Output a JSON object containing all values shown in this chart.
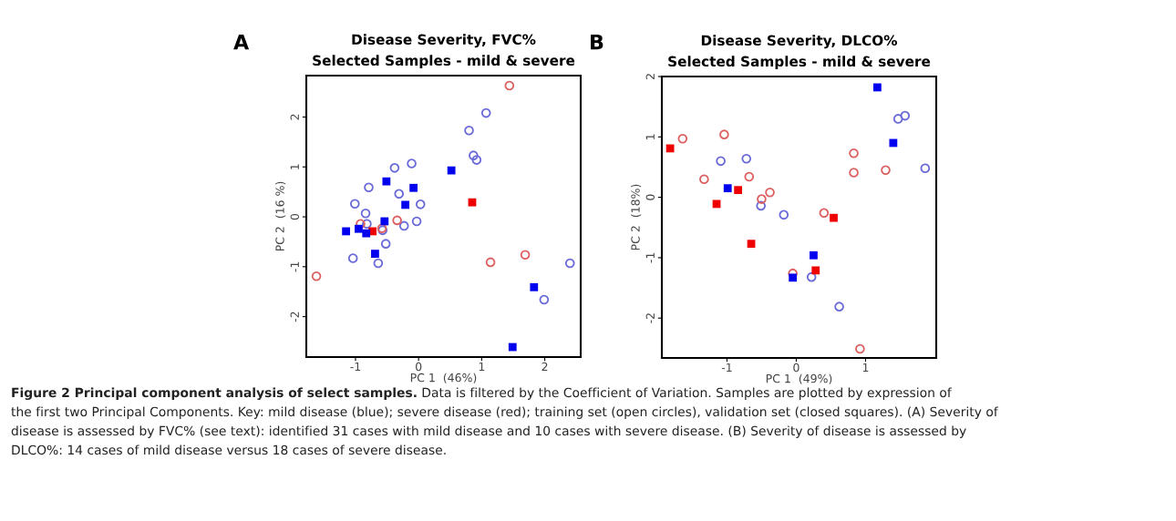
{
  "chart_data": [
    {
      "type": "scatter",
      "title": "Disease Severity, FVC%\nSelected Samples - mild & severe",
      "xlabel": "PC 1  (46%)",
      "ylabel": "PC 2  (16 %)",
      "xlim": [
        -1.78,
        2.57
      ],
      "ylim": [
        -2.81,
        2.83
      ],
      "xticks": [
        -1,
        0,
        1,
        2
      ],
      "yticks": [
        -2,
        -1,
        0,
        1,
        2
      ],
      "grid": false,
      "legend": false,
      "annotations": [
        "A",
        "Figure 2 Principal component analysis of select samples.",
        " Data is filtered by the Coefficient of Variation. Samples are plotted by expression of\nthe first two Principal Components. Key: mild disease (blue); severe disease (red); training set (open circles), validation set (closed squares). (A) Severity of\ndisease is assessed by FVC% (see text): identified 31 cases with mild disease and 10 cases with severe disease. (B) Severity of disease is assessed by\nDLCO%: 14 cases of mild disease versus 18 cases of severe disease."
      ],
      "series": [
        {
          "marker": "circle",
          "color": "#6a6ad8",
          "x": [
            -1.01,
            -0.79,
            -0.84,
            -0.82,
            -1.04,
            -0.64,
            -0.52,
            -0.38,
            -0.31,
            -0.23,
            -0.11,
            -0.03,
            0.03,
            0.8,
            1.07,
            0.87,
            0.92,
            1.99,
            2.4,
            -0.57
          ],
          "values": [
            0.26,
            0.59,
            0.07,
            -0.14,
            -0.83,
            -0.93,
            -0.54,
            0.98,
            0.46,
            -0.18,
            1.07,
            -0.09,
            0.25,
            1.73,
            2.08,
            1.23,
            1.14,
            -1.66,
            -0.93,
            -0.27
          ]
        },
        {
          "marker": "circle",
          "color": "#dd6060",
          "x": [
            -1.62,
            -0.92,
            -0.34,
            -0.58,
            1.44,
            1.69,
            1.14
          ],
          "values": [
            -1.19,
            -0.14,
            -0.07,
            -0.23,
            2.63,
            -0.76,
            -0.91
          ]
        },
        {
          "marker": "square",
          "color": "#ee0000",
          "x": [
            -0.73,
            0.85
          ],
          "values": [
            -0.29,
            0.29
          ]
        },
        {
          "marker": "square",
          "color": "#0000ee",
          "x": [
            -1.15,
            -0.95,
            -0.83,
            -0.69,
            -0.54,
            -0.51,
            -0.21,
            -0.08,
            0.52,
            1.83,
            1.49
          ],
          "values": [
            -0.29,
            -0.24,
            -0.33,
            -0.74,
            -0.09,
            0.71,
            0.24,
            0.58,
            0.93,
            -1.41,
            -2.61
          ]
        }
      ]
    },
    {
      "type": "scatter",
      "title": "Disease Severity, DLCO%\nSelected Samples - mild & severe",
      "xlabel": "PC 1  (49%)",
      "ylabel": "PC 2  (18%)",
      "xlim": [
        -1.94,
        2.02
      ],
      "ylim": [
        -2.66,
        2.0
      ],
      "xticks": [
        -1,
        0,
        1
      ],
      "yticks": [
        -2,
        -1,
        0,
        1,
        2
      ],
      "grid": false,
      "legend": false,
      "annotations": [
        "B"
      ],
      "series": [
        {
          "marker": "circle",
          "color": "#6a6ad8",
          "x": [
            -1.09,
            -0.72,
            -0.51,
            -0.18,
            0.22,
            0.62,
            1.47,
            1.57,
            1.86
          ],
          "values": [
            0.6,
            0.64,
            -0.14,
            -0.29,
            -1.32,
            -1.81,
            1.3,
            1.35,
            0.48
          ]
        },
        {
          "marker": "circle",
          "color": "#dd6060",
          "x": [
            -1.64,
            -1.04,
            -1.33,
            -0.68,
            -0.5,
            -0.38,
            0.4,
            0.83,
            0.83,
            1.29,
            0.92,
            -0.05
          ],
          "values": [
            0.97,
            1.04,
            0.3,
            0.34,
            -0.03,
            0.08,
            -0.26,
            0.73,
            0.41,
            0.45,
            -2.51,
            -1.26
          ]
        },
        {
          "marker": "square",
          "color": "#ee0000",
          "x": [
            -1.82,
            -0.84,
            -1.15,
            -0.65,
            0.54,
            0.28
          ],
          "values": [
            0.81,
            0.12,
            -0.11,
            -0.77,
            -0.34,
            -1.21
          ]
        },
        {
          "marker": "square",
          "color": "#0000ee",
          "x": [
            1.17,
            1.4,
            -0.99,
            0.25,
            -0.05
          ],
          "values": [
            1.82,
            0.9,
            0.15,
            -0.96,
            -1.33
          ]
        }
      ]
    }
  ]
}
